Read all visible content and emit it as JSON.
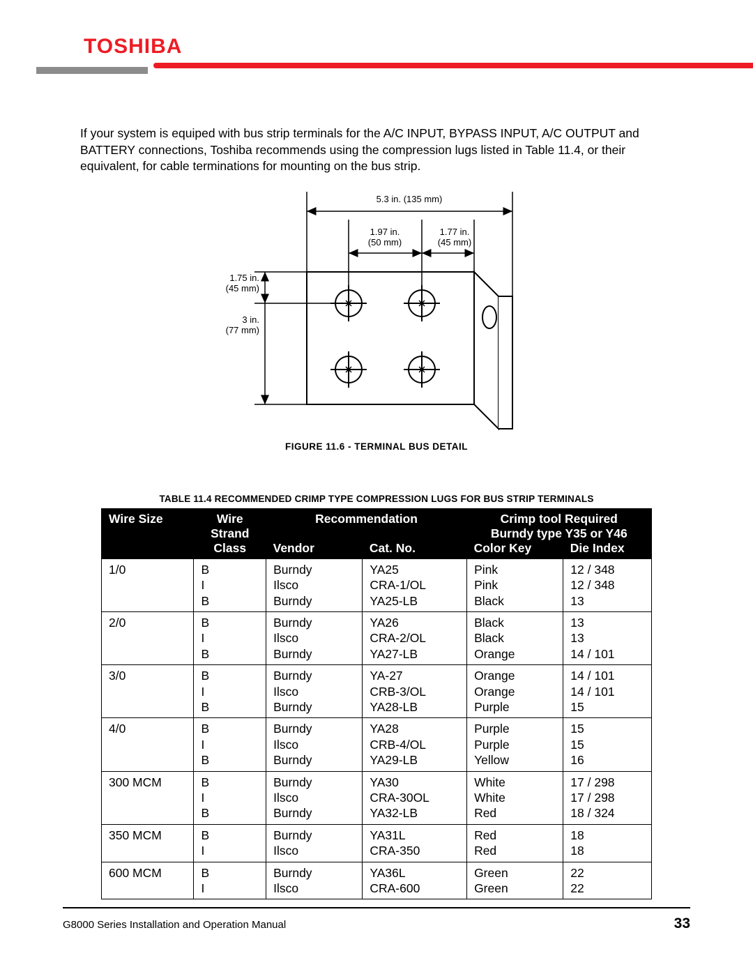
{
  "brand": "TOSHIBA",
  "colors": {
    "brand_red": "#ed1c24",
    "grey": "#8c8c8c",
    "black": "#000000"
  },
  "intro_text": "If your system is equiped with bus strip terminals for the A/C INPUT, BYPASS INPUT, A/C OUTPUT and BATTERY connections, Toshiba recommends using the compression lugs listed in Table 11.4, or their equivalent, for cable terminations for mounting on the bus strip.",
  "figure": {
    "caption": "FIGURE 11.6 - TERMINAL BUS DETAIL",
    "dims": {
      "total_width": "5.3 in. (135 mm)",
      "inner_left": "1.97 in.",
      "inner_left_mm": "(50 mm)",
      "inner_right": "1.77 in.",
      "inner_right_mm": "(45 mm)",
      "height_top": "1.75 in.",
      "height_top_mm": "(45 mm)",
      "height_full": "3 in.",
      "height_full_mm": "(77 mm)"
    }
  },
  "table": {
    "caption": "TABLE 11.4  RECOMMENDED CRIMP TYPE COMPRESSION LUGS FOR BUS STRIP TERMINALS",
    "headers": {
      "wire_size": "Wire Size",
      "wire_strand_class": "Wire Strand Class",
      "recommendation": "Recommendation",
      "vendor": "Vendor",
      "cat_no": "Cat. No.",
      "crimp_tool": "Crimp tool Required",
      "crimp_sub": "Burndy type Y35 or Y46",
      "color_key": "Color Key",
      "die_index": "Die Index"
    },
    "groups": [
      {
        "wire_size": "1/0",
        "rows": [
          {
            "class": "B",
            "vendor": "Burndy",
            "cat": "YA25",
            "color": "Pink",
            "die": "12 / 348"
          },
          {
            "class": "I",
            "vendor": "Ilsco",
            "cat": "CRA-1/OL",
            "color": "Pink",
            "die": "12 / 348"
          },
          {
            "class": "B",
            "vendor": "Burndy",
            "cat": "YA25-LB",
            "color": "Black",
            "die": "13"
          }
        ]
      },
      {
        "wire_size": "2/0",
        "rows": [
          {
            "class": "B",
            "vendor": "Burndy",
            "cat": "YA26",
            "color": "Black",
            "die": "13"
          },
          {
            "class": "I",
            "vendor": "Ilsco",
            "cat": "CRA-2/OL",
            "color": "Black",
            "die": "13"
          },
          {
            "class": "B",
            "vendor": "Burndy",
            "cat": "YA27-LB",
            "color": "Orange",
            "die": "14 / 101"
          }
        ]
      },
      {
        "wire_size": "3/0",
        "rows": [
          {
            "class": "B",
            "vendor": "Burndy",
            "cat": "YA-27",
            "color": "Orange",
            "die": "14 / 101"
          },
          {
            "class": "I",
            "vendor": "Ilsco",
            "cat": "CRB-3/OL",
            "color": "Orange",
            "die": "14 / 101"
          },
          {
            "class": "B",
            "vendor": "Burndy",
            "cat": "YA28-LB",
            "color": "Purple",
            "die": "15"
          }
        ]
      },
      {
        "wire_size": "4/0",
        "rows": [
          {
            "class": "B",
            "vendor": "Burndy",
            "cat": "YA28",
            "color": "Purple",
            "die": "15"
          },
          {
            "class": "I",
            "vendor": "Ilsco",
            "cat": "CRB-4/OL",
            "color": "Purple",
            "die": "15"
          },
          {
            "class": "B",
            "vendor": "Burndy",
            "cat": "YA29-LB",
            "color": "Yellow",
            "die": "16"
          }
        ]
      },
      {
        "wire_size": "300 MCM",
        "rows": [
          {
            "class": "B",
            "vendor": "Burndy",
            "cat": "YA30",
            "color": "White",
            "die": "17 / 298"
          },
          {
            "class": "I",
            "vendor": "Ilsco",
            "cat": "CRA-30OL",
            "color": "White",
            "die": "17 / 298"
          },
          {
            "class": "B",
            "vendor": "Burndy",
            "cat": "YA32-LB",
            "color": "Red",
            "die": "18 / 324"
          }
        ]
      },
      {
        "wire_size": "350 MCM",
        "rows": [
          {
            "class": "B",
            "vendor": "Burndy",
            "cat": "YA31L",
            "color": "Red",
            "die": "18"
          },
          {
            "class": "I",
            "vendor": "Ilsco",
            "cat": "CRA-350",
            "color": "Red",
            "die": "18"
          }
        ]
      },
      {
        "wire_size": "600 MCM",
        "rows": [
          {
            "class": "B",
            "vendor": "Burndy",
            "cat": "YA36L",
            "color": "Green",
            "die": "22"
          },
          {
            "class": "I",
            "vendor": "Ilsco",
            "cat": "CRA-600",
            "color": "Green",
            "die": "22"
          }
        ]
      }
    ]
  },
  "footer": {
    "left": "G8000 Series Installation and Operation Manual",
    "page": "33"
  }
}
